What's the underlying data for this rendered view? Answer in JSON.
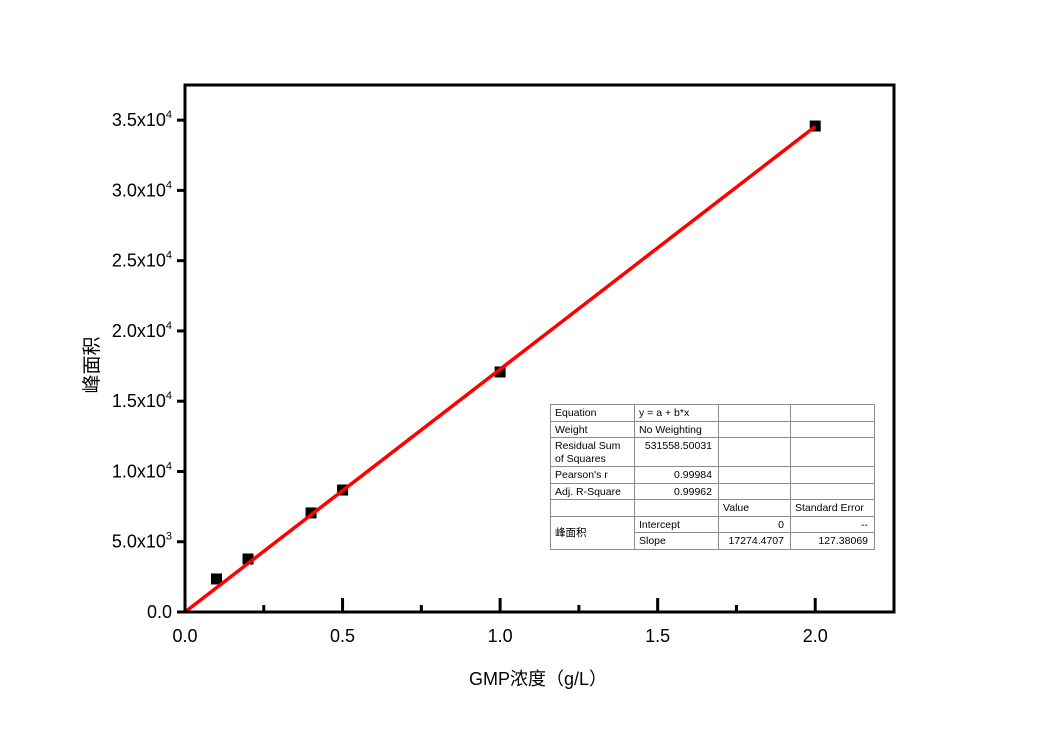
{
  "chart_data": {
    "type": "scatter",
    "xlabel": "GMP浓度（g/L）",
    "ylabel": "峰面积",
    "xlim": [
      0,
      2.25
    ],
    "ylim": [
      0,
      37500
    ],
    "grid": false,
    "x_ticks": [
      0,
      0.5,
      1.0,
      1.5,
      2.0
    ],
    "x_tick_labels": [
      "0.0",
      "0.5",
      "1.0",
      "1.5",
      "2.0"
    ],
    "x_minor_ticks": [
      0.25,
      0.75,
      1.25,
      1.75
    ],
    "y_ticks": [
      0,
      5000,
      10000,
      15000,
      20000,
      25000,
      30000,
      35000
    ],
    "y_tick_labels": [
      {
        "text": "0.0",
        "sup": ""
      },
      {
        "text": "5.0x10",
        "sup": "3"
      },
      {
        "text": "1.0x10",
        "sup": "4"
      },
      {
        "text": "1.5x10",
        "sup": "4"
      },
      {
        "text": "2.0x10",
        "sup": "4"
      },
      {
        "text": "2.5x10",
        "sup": "4"
      },
      {
        "text": "3.0x10",
        "sup": "4"
      },
      {
        "text": "3.5x10",
        "sup": "4"
      }
    ],
    "series": [
      {
        "type": "scatter",
        "color": "#000000",
        "x": [
          0.1,
          0.2,
          0.4,
          0.5,
          1.0,
          2.0
        ],
        "y": [
          2350,
          3770,
          7050,
          8680,
          17080,
          34580
        ]
      },
      {
        "type": "line",
        "color": "#ff0000",
        "x": [
          0,
          2.0
        ],
        "y": [
          0,
          34549
        ]
      }
    ],
    "fit_table": {
      "equation_label": "Equation",
      "equation": "y = a + b*x",
      "weight_label": "Weight",
      "weight": "No Weighting",
      "rss_label": "Residual Sum of Squares",
      "rss": "531558.50031",
      "pearson_label": "Pearson's r",
      "pearson": "0.99984",
      "adj_r2_label": "Adj. R-Square",
      "adj_r2": "0.99962",
      "value_header": "Value",
      "stderr_header": "Standard Error",
      "dataset": "峰面积",
      "params": [
        {
          "name": "Intercept",
          "value": "0",
          "stderr": "--"
        },
        {
          "name": "Slope",
          "value": "17274.4707",
          "stderr": "127.38069"
        }
      ]
    }
  }
}
